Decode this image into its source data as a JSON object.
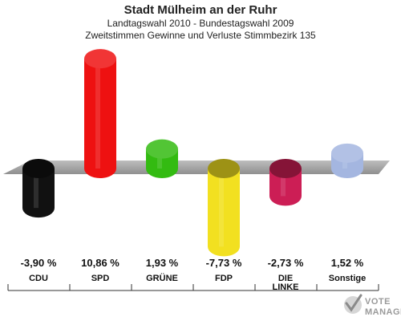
{
  "chart_data": {
    "type": "bar",
    "title": "Stadt Mülheim an der Ruhr",
    "subtitles": [
      "Landtagswahl 2010 - Bundestagswahl 2009",
      "Zweitstimmen Gewinne und Verluste Stimmbezirk 135"
    ],
    "categories": [
      [
        "CDU"
      ],
      [
        "SPD"
      ],
      [
        "GRÜNE"
      ],
      [
        "FDP"
      ],
      [
        "DIE",
        "LINKE"
      ],
      [
        "Sonstige"
      ]
    ],
    "values": [
      -3.9,
      10.86,
      1.93,
      -7.73,
      -2.73,
      1.52
    ],
    "value_labels": [
      "-3,90 %",
      "10,86 %",
      "1,93 %",
      "-7,73 %",
      "-2,73 %",
      "1,52 %"
    ],
    "colors": [
      "#111111",
      "#ee1111",
      "#33bb11",
      "#f2e020",
      "#cc1e55",
      "#a4b6e0"
    ],
    "ylim": [
      -9,
      12
    ],
    "grid": false
  },
  "logo": {
    "line1": "VOTE",
    "line2": "MANAGER"
  }
}
